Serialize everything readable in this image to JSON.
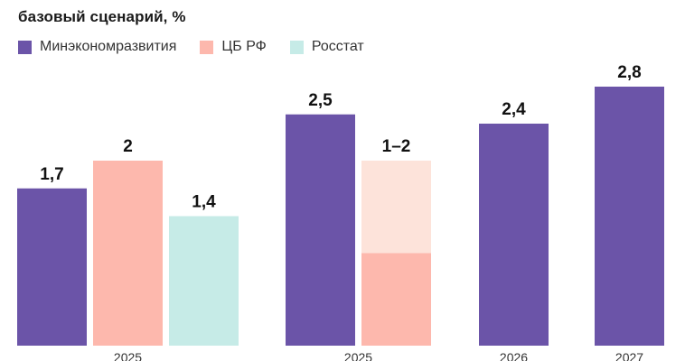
{
  "chart_data": {
    "type": "bar",
    "title": "",
    "subtitle": "базовый сценарий, %",
    "legend_position": "top-left",
    "grid": false,
    "xlabel": "",
    "ylabel": "",
    "ylim": [
      0,
      3
    ],
    "series": [
      {
        "name": "Минэкономразвития",
        "color": "#6b54a8"
      },
      {
        "name": "ЦБ РФ",
        "color": "#fdb8ad"
      },
      {
        "name": "Росстат",
        "color": "#c6ebe7"
      }
    ],
    "groups": [
      {
        "label": "2025",
        "bars": [
          {
            "series": "Минэкономразвития",
            "value": 1.7,
            "label": "1,7"
          },
          {
            "series": "ЦБ РФ",
            "value": 2,
            "label": "2"
          },
          {
            "series": "Росстат",
            "value": 1.4,
            "label": "1,4"
          }
        ]
      },
      {
        "label": "2025",
        "bars": [
          {
            "series": "Минэкономразвития",
            "value": 2.5,
            "label": "2,5"
          },
          {
            "series": "ЦБ РФ",
            "low": 1,
            "high": 2,
            "label": "1–2",
            "range_color": "#fde3da"
          }
        ]
      },
      {
        "label": "2026",
        "bars": [
          {
            "series": "Минэкономразвития",
            "value": 2.4,
            "label": "2,4"
          }
        ]
      },
      {
        "label": "2027",
        "bars": [
          {
            "series": "Минэкономразвития",
            "value": 2.8,
            "label": "2,8"
          }
        ]
      }
    ]
  }
}
